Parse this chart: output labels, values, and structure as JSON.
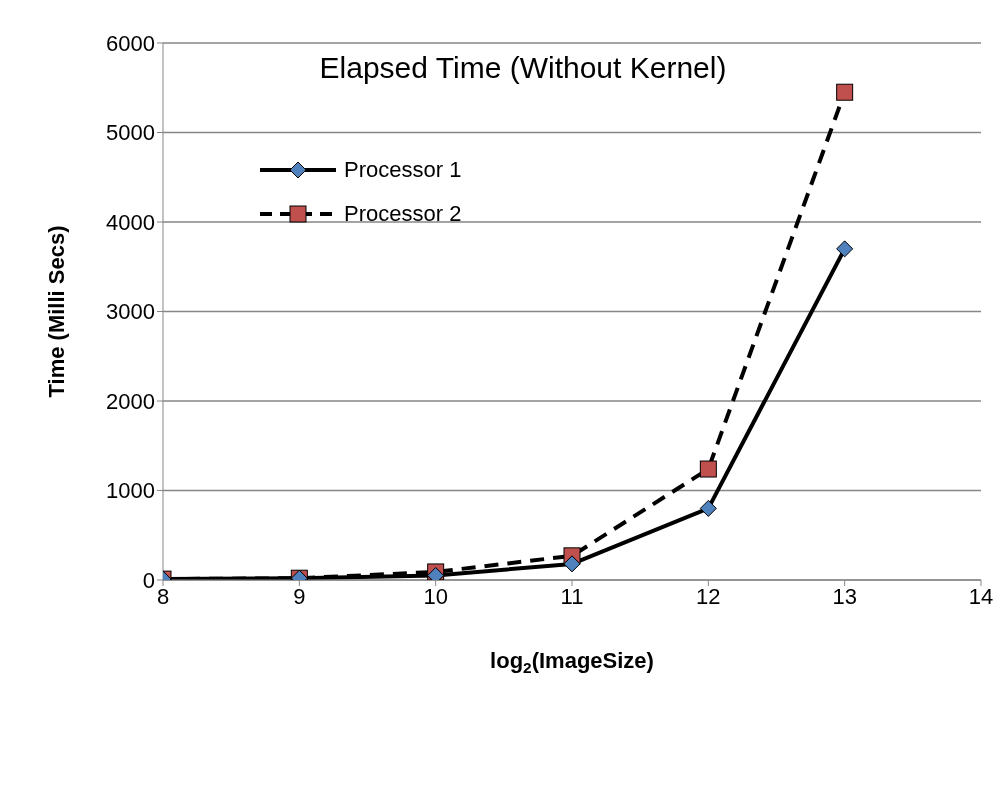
{
  "chart_data": {
    "type": "line",
    "title": "Elapsed Time (Without Kernel)",
    "xlabel": "log$_{2}$(ImageSize)",
    "ylabel": "Time (Milli Secs)",
    "x": [
      8,
      9,
      10,
      11,
      12,
      13
    ],
    "series": [
      {
        "name": "Processor 1",
        "color": "#4f81bd",
        "values": [
          10,
          20,
          50,
          180,
          800,
          3700
        ],
        "marker": "diamond",
        "line_style": "solid"
      },
      {
        "name": "Processor 2",
        "color": "#c0504d",
        "values": [
          10,
          20,
          90,
          270,
          1240,
          5450
        ],
        "marker": "square",
        "line_style": "dashed"
      }
    ],
    "xlim": [
      8,
      14
    ],
    "xticks": [
      8,
      9,
      10,
      11,
      12,
      13,
      14
    ],
    "ylim": [
      0,
      6000
    ],
    "yticks": [
      0,
      1000,
      2000,
      3000,
      4000,
      5000,
      6000
    ],
    "grid": "y",
    "legend": "top left"
  }
}
